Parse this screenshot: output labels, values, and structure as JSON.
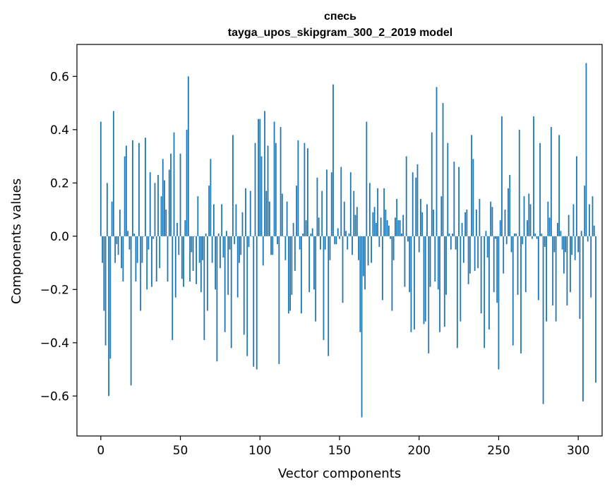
{
  "chart_data": {
    "type": "bar",
    "title": "спесь",
    "subtitle": "tayga_upos_skipgram_300_2_2019 model",
    "xlabel": "Vector components",
    "ylabel": "Components values",
    "xlim": [
      -15,
      315
    ],
    "ylim": [
      -0.75,
      0.72
    ],
    "xticks": [
      0,
      50,
      100,
      150,
      200,
      250,
      300
    ],
    "yticks": [
      -0.6,
      -0.4,
      -0.2,
      0.0,
      0.2,
      0.4,
      0.6
    ],
    "xtick_labels": [
      "0",
      "50",
      "100",
      "150",
      "200",
      "250",
      "300"
    ],
    "ytick_labels": [
      "−0.6",
      "−0.4",
      "−0.2",
      "0.0",
      "0.2",
      "0.4",
      "0.6"
    ],
    "grid": false,
    "bar_color": "#1f77b4",
    "values": [
      0.43,
      -0.1,
      -0.28,
      -0.41,
      0.2,
      -0.6,
      -0.46,
      0.13,
      0.47,
      -0.1,
      -0.03,
      -0.07,
      0.1,
      -0.12,
      -0.17,
      0.3,
      0.34,
      0.02,
      -0.05,
      -0.56,
      0.36,
      0.01,
      -0.17,
      -0.1,
      0.35,
      -0.28,
      -0.1,
      0.0,
      0.37,
      -0.2,
      -0.05,
      0.24,
      -0.19,
      -0.01,
      0.2,
      -0.17,
      0.23,
      -0.12,
      0.15,
      0.29,
      0.21,
      0.1,
      -0.17,
      0.25,
      0.31,
      -0.39,
      0.39,
      -0.23,
      0.05,
      -0.07,
      0.31,
      -0.16,
      -0.19,
      0.06,
      0.4,
      0.6,
      -0.17,
      -0.06,
      -0.13,
      0.0,
      -0.18,
      0.15,
      -0.1,
      -0.21,
      -0.09,
      -0.39,
      0.01,
      -0.28,
      0.19,
      0.29,
      -0.1,
      0.12,
      -0.2,
      -0.47,
      0.01,
      -0.12,
      0.12,
      -0.08,
      -0.36,
      0.02,
      -0.22,
      -0.05,
      -0.42,
      0.38,
      -0.03,
      0.12,
      -0.23,
      -0.1,
      -0.07,
      0.09,
      -0.37,
      0.18,
      -0.45,
      -0.04,
      0.17,
      0.0,
      -0.49,
      0.35,
      -0.5,
      0.44,
      0.44,
      0.3,
      -0.11,
      0.47,
      0.17,
      0.34,
      0.13,
      -0.07,
      -0.07,
      0.43,
      0.35,
      -0.03,
      -0.48,
      0.41,
      0.16,
      0.0,
      -0.09,
      0.13,
      -0.29,
      -0.28,
      -0.22,
      0.05,
      -0.13,
      0.19,
      0.36,
      -0.05,
      -0.29,
      0.01,
      0.35,
      0.06,
      0.33,
      -0.21,
      0.01,
      0.03,
      -0.2,
      -0.32,
      0.22,
      0.07,
      -0.05,
      0.17,
      -0.39,
      -0.05,
      0.25,
      -0.45,
      -0.09,
      0.24,
      0.57,
      -0.03,
      -0.03,
      0.03,
      -0.01,
      0.26,
      -0.25,
      0.13,
      0.02,
      -0.05,
      0.01,
      0.24,
      -0.07,
      0.17,
      0.08,
      0.11,
      -0.09,
      -0.36,
      -0.68,
      -0.15,
      -0.2,
      0.43,
      -0.11,
      0.2,
      -0.1,
      0.09,
      0.11,
      0.05,
      0.18,
      -0.04,
      0.07,
      -0.24,
      0.18,
      0.1,
      0.06,
      0.04,
      -0.01,
      -0.28,
      -0.09,
      0.07,
      0.14,
      0.06,
      0.06,
      0.01,
      0.08,
      -0.19,
      0.3,
      -0.02,
      -0.21,
      -0.36,
      0.24,
      -0.35,
      0.22,
      0.27,
      -0.06,
      0.14,
      0.09,
      -0.33,
      -0.32,
      0.12,
      -0.44,
      -0.19,
      0.39,
      0.1,
      -0.17,
      0.56,
      -0.2,
      -0.36,
      0.15,
      0.5,
      -0.34,
      -0.22,
      0.35,
      0.01,
      -0.05,
      0.01,
      0.28,
      -0.05,
      -0.42,
      0.26,
      -0.32,
      0.05,
      -0.1,
      0.09,
      0.1,
      -0.18,
      -0.14,
      0.38,
      0.29,
      -0.13,
      0.1,
      -0.12,
      0.14,
      -0.29,
      0.0,
      -0.42,
      0.02,
      -0.08,
      -0.35,
      0.13,
      0.11,
      -0.21,
      -0.01,
      -0.25,
      -0.5,
      0.06,
      0.45,
      -0.14,
      0.1,
      -0.03,
      0.18,
      0.23,
      -0.06,
      -0.41,
      0.01,
      0.01,
      -0.22,
      0.4,
      -0.44,
      -0.03,
      0.15,
      -0.21,
      0.06,
      0.16,
      0.12,
      -0.01,
      0.45,
      0.01,
      -0.01,
      -0.24,
      0.35,
      0.01,
      -0.63,
      -0.04,
      -0.32,
      0.13,
      0.07,
      0.41,
      -0.26,
      -0.06,
      -0.32,
      0.05,
      0.38,
      0.02,
      -0.05,
      -0.14,
      -0.06,
      -0.26,
      0.08,
      -0.21,
      -0.07,
      0.12,
      -0.09,
      0.3,
      -0.06,
      -0.31,
      0.02,
      -0.62,
      0.19,
      0.65,
      -0.02,
      0.12,
      -0.23,
      0.15,
      0.04,
      -0.55
    ]
  }
}
